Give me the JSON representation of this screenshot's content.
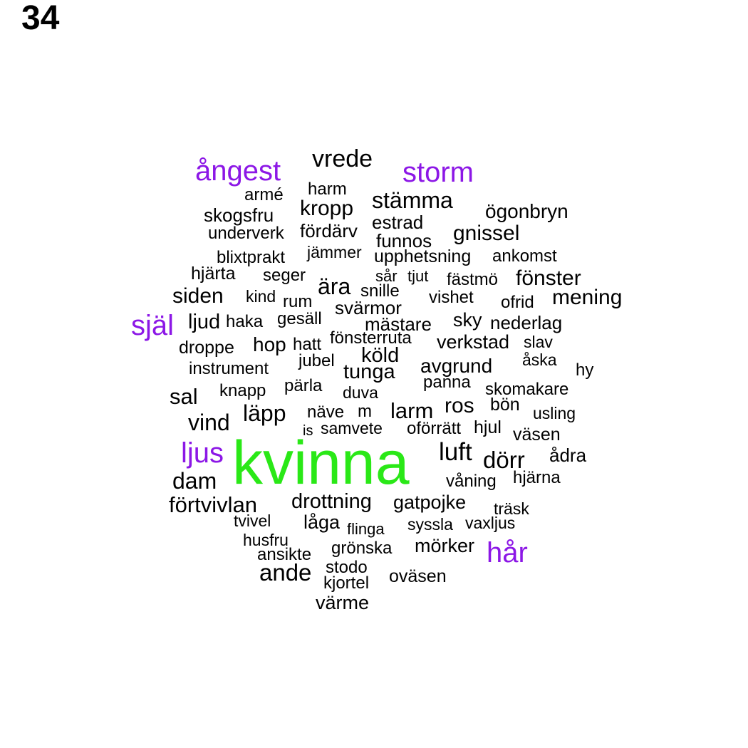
{
  "page_number": "34",
  "colors": {
    "default": "#000000",
    "purple": "#8c17e6",
    "green": "#2ae817"
  },
  "words": [
    {
      "text": "vrede"
    },
    {
      "text": "ångest",
      "color": "purple"
    },
    {
      "text": "storm",
      "color": "purple"
    },
    {
      "text": "harm"
    },
    {
      "text": "armé"
    },
    {
      "text": "stämma"
    },
    {
      "text": "kropp"
    },
    {
      "text": "ögonbryn"
    },
    {
      "text": "skogsfru"
    },
    {
      "text": "estrad"
    },
    {
      "text": "underverk"
    },
    {
      "text": "fördärv"
    },
    {
      "text": "gnissel"
    },
    {
      "text": "funnos"
    },
    {
      "text": "jämmer"
    },
    {
      "text": "blixtprakt"
    },
    {
      "text": "upphetsning"
    },
    {
      "text": "ankomst"
    },
    {
      "text": "hjärta"
    },
    {
      "text": "seger"
    },
    {
      "text": "sår"
    },
    {
      "text": "tjut"
    },
    {
      "text": "fästmö"
    },
    {
      "text": "fönster"
    },
    {
      "text": "ära"
    },
    {
      "text": "snille"
    },
    {
      "text": "siden"
    },
    {
      "text": "kind"
    },
    {
      "text": "rum"
    },
    {
      "text": "vishet"
    },
    {
      "text": "mening"
    },
    {
      "text": "ofrid"
    },
    {
      "text": "svärmor"
    },
    {
      "text": "själ",
      "color": "purple"
    },
    {
      "text": "ljud"
    },
    {
      "text": "haka"
    },
    {
      "text": "gesäll"
    },
    {
      "text": "mästare"
    },
    {
      "text": "sky"
    },
    {
      "text": "nederlag"
    },
    {
      "text": "fönsterruta"
    },
    {
      "text": "droppe"
    },
    {
      "text": "hop"
    },
    {
      "text": "hatt"
    },
    {
      "text": "verkstad"
    },
    {
      "text": "slav"
    },
    {
      "text": "köld"
    },
    {
      "text": "jubel"
    },
    {
      "text": "åska"
    },
    {
      "text": "instrument"
    },
    {
      "text": "tunga"
    },
    {
      "text": "avgrund"
    },
    {
      "text": "hy"
    },
    {
      "text": "panna"
    },
    {
      "text": "knapp"
    },
    {
      "text": "pärla"
    },
    {
      "text": "duva"
    },
    {
      "text": "skomakare"
    },
    {
      "text": "sal"
    },
    {
      "text": "ros"
    },
    {
      "text": "bön"
    },
    {
      "text": "läpp"
    },
    {
      "text": "näve"
    },
    {
      "text": "m"
    },
    {
      "text": "larm"
    },
    {
      "text": "usling"
    },
    {
      "text": "vind"
    },
    {
      "text": "is"
    },
    {
      "text": "samvete"
    },
    {
      "text": "oförrätt"
    },
    {
      "text": "hjul"
    },
    {
      "text": "väsen"
    },
    {
      "text": "ljus",
      "color": "purple"
    },
    {
      "text": "kvinna",
      "color": "green"
    },
    {
      "text": "luft"
    },
    {
      "text": "dörr"
    },
    {
      "text": "ådra"
    },
    {
      "text": "dam"
    },
    {
      "text": "våning"
    },
    {
      "text": "hjärna"
    },
    {
      "text": "förtvivlan"
    },
    {
      "text": "drottning"
    },
    {
      "text": "gatpojke"
    },
    {
      "text": "träsk"
    },
    {
      "text": "tvivel"
    },
    {
      "text": "låga"
    },
    {
      "text": "flinga"
    },
    {
      "text": "syssla"
    },
    {
      "text": "vaxljus"
    },
    {
      "text": "husfru"
    },
    {
      "text": "mörker"
    },
    {
      "text": "hår",
      "color": "purple"
    },
    {
      "text": "ansikte"
    },
    {
      "text": "grönska"
    },
    {
      "text": "ande"
    },
    {
      "text": "stodo"
    },
    {
      "text": "oväsen"
    },
    {
      "text": "kjortel"
    },
    {
      "text": "värme"
    }
  ]
}
